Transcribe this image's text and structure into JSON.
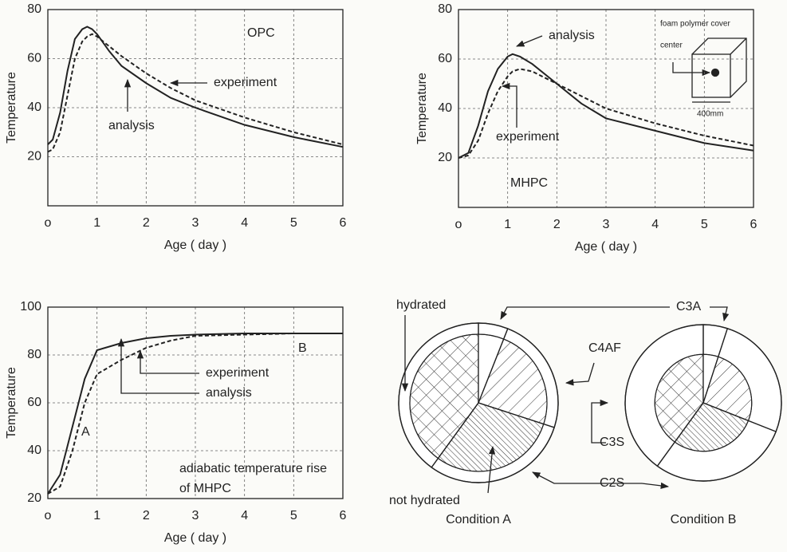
{
  "chart_data": [
    {
      "type": "line",
      "xlabel": "Age ( day )",
      "ylabel": "Temperature",
      "xlim": [
        0,
        6
      ],
      "ylim": [
        0,
        80
      ],
      "xticks": [
        {
          "value": 0,
          "label": "o"
        },
        1,
        2,
        3,
        4,
        5,
        6
      ],
      "yticks": [
        20,
        40,
        60,
        80
      ],
      "grid": true,
      "x": [
        0,
        0.1,
        0.25,
        0.4,
        0.55,
        0.7,
        0.8,
        0.9,
        1,
        1.25,
        1.5,
        2,
        2.5,
        3,
        4,
        5,
        6
      ],
      "series": [
        {
          "name": "analysis",
          "color": "#222",
          "style": "solid",
          "values": [
            25,
            27,
            38,
            55,
            68,
            72,
            73,
            72,
            70,
            63,
            57,
            50,
            44,
            40,
            33,
            28,
            24
          ]
        },
        {
          "name": "experiment",
          "color": "#222",
          "style": "dashed",
          "values": [
            22,
            23,
            30,
            45,
            60,
            67,
            69,
            70,
            69,
            65,
            61,
            54,
            48,
            43,
            36,
            30,
            25
          ]
        }
      ],
      "annotations": [
        "OPC"
      ]
    },
    {
      "type": "line",
      "xlabel": "Age ( day )",
      "ylabel": "Temperature",
      "xlim": [
        0,
        6
      ],
      "ylim": [
        0,
        80
      ],
      "xticks": [
        {
          "value": 0,
          "label": "o"
        },
        1,
        2,
        3,
        4,
        5,
        6
      ],
      "yticks": [
        20,
        40,
        60,
        80
      ],
      "grid": true,
      "x": [
        0,
        0.2,
        0.4,
        0.6,
        0.8,
        1,
        1.1,
        1.25,
        1.5,
        2,
        2.5,
        3,
        4,
        5,
        6
      ],
      "series": [
        {
          "name": "analysis",
          "color": "#222",
          "style": "solid",
          "values": [
            20,
            22,
            33,
            47,
            56,
            61,
            62,
            61,
            58,
            50,
            42,
            36,
            31,
            26,
            23
          ]
        },
        {
          "name": "experiment",
          "color": "#222",
          "style": "dashed",
          "values": [
            20,
            21,
            27,
            38,
            47,
            53,
            55,
            56,
            55,
            50,
            45,
            40,
            34,
            29,
            25
          ]
        }
      ],
      "annotations": [
        "MHPC",
        "foam polymer cover",
        "center",
        "400mm"
      ]
    },
    {
      "type": "line",
      "xlabel": "Age ( day )",
      "ylabel": "Temperature",
      "xlim": [
        0,
        6
      ],
      "ylim": [
        20,
        100
      ],
      "xticks": [
        {
          "value": 0,
          "label": "o"
        },
        1,
        2,
        3,
        4,
        5,
        6
      ],
      "yticks": [
        20,
        40,
        60,
        80,
        100
      ],
      "grid": true,
      "x": [
        0,
        0.25,
        0.5,
        0.75,
        1,
        1.5,
        2,
        2.5,
        3,
        4,
        5,
        6
      ],
      "series": [
        {
          "name": "analysis",
          "color": "#222",
          "style": "solid",
          "values": [
            22,
            30,
            50,
            70,
            82,
            85,
            87,
            88,
            88.5,
            89,
            89,
            89
          ]
        },
        {
          "name": "experiment",
          "color": "#222",
          "style": "dashed",
          "values": [
            22,
            25,
            40,
            60,
            72,
            78,
            83,
            86,
            88,
            88.5,
            89,
            89
          ]
        }
      ],
      "annotations": [
        "A",
        "B",
        "adiabatic temperature rise",
        "of MHPC"
      ]
    },
    {
      "type": "pie",
      "categories": [
        "C3A",
        "C4AF",
        "C2S",
        "C3S"
      ],
      "series": [
        {
          "name": "Condition A",
          "values": [
            6,
            24,
            30,
            40
          ],
          "core_radius": 0.86
        },
        {
          "name": "Condition B",
          "values": [
            5,
            26,
            29,
            40
          ],
          "core_radius": 0.62
        }
      ],
      "annotations": [
        "hydrated",
        "not hydrated"
      ]
    }
  ]
}
